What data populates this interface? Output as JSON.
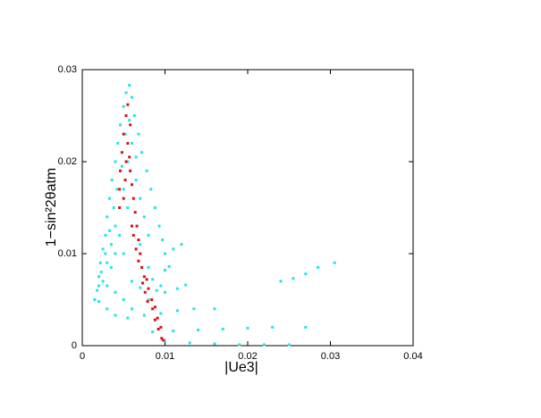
{
  "chart_data": {
    "type": "scatter",
    "xlabel": "|Ue3|",
    "ylabel": "1−sin²2θatm",
    "xlim": [
      0,
      0.04
    ],
    "ylim": [
      0,
      0.03
    ],
    "xticks": [
      0,
      0.01,
      0.02,
      0.03,
      0.04
    ],
    "yticks": [
      0,
      0.01,
      0.02,
      0.03
    ],
    "grid": false,
    "series": [
      {
        "color": "#22e6e6",
        "x": [
          0.0015,
          0.0018,
          0.002,
          0.0022,
          0.0025,
          0.0028,
          0.003,
          0.0033,
          0.0036,
          0.004,
          0.0043,
          0.0046,
          0.005,
          0.0053,
          0.0057,
          0.006,
          0.0063,
          0.0068,
          0.0072,
          0.0078,
          0.0083,
          0.0088,
          0.0093,
          0.0097,
          0.0025,
          0.003,
          0.0035,
          0.004,
          0.0045,
          0.005,
          0.0055,
          0.006,
          0.0035,
          0.004,
          0.0045,
          0.0055,
          0.0065,
          0.007,
          0.0075,
          0.008,
          0.003,
          0.005,
          0.006,
          0.007,
          0.0038,
          0.0042,
          0.0048,
          0.0052,
          0.0057,
          0.0065,
          0.0033,
          0.0028,
          0.0023,
          0.002,
          0.002,
          0.004,
          0.006,
          0.008,
          0.01,
          0.011,
          0.012,
          0.003,
          0.005,
          0.007,
          0.0085,
          0.01,
          0.0105,
          0.004,
          0.006,
          0.008,
          0.01,
          0.0115,
          0.0125,
          0.0055,
          0.0075,
          0.0095,
          0.0115,
          0.0135,
          0.016,
          0.0085,
          0.011,
          0.014,
          0.017,
          0.02,
          0.023,
          0.027,
          0.01,
          0.013,
          0.016,
          0.019,
          0.022,
          0.025,
          0.024,
          0.0255,
          0.027,
          0.0285,
          0.0305,
          0.009,
          0.0095
        ],
        "values": [
          0.005,
          0.006,
          0.0075,
          0.009,
          0.0105,
          0.012,
          0.014,
          0.016,
          0.018,
          0.02,
          0.022,
          0.024,
          0.026,
          0.0275,
          0.0283,
          0.027,
          0.025,
          0.023,
          0.021,
          0.019,
          0.017,
          0.015,
          0.013,
          0.0115,
          0.007,
          0.009,
          0.011,
          0.013,
          0.015,
          0.017,
          0.02,
          0.022,
          0.0085,
          0.01,
          0.012,
          0.015,
          0.018,
          0.016,
          0.014,
          0.012,
          0.0065,
          0.01,
          0.013,
          0.011,
          0.015,
          0.017,
          0.0195,
          0.023,
          0.0245,
          0.0205,
          0.0125,
          0.01,
          0.008,
          0.0065,
          0.0048,
          0.0058,
          0.007,
          0.0085,
          0.01,
          0.0105,
          0.011,
          0.004,
          0.005,
          0.0063,
          0.0072,
          0.0082,
          0.0086,
          0.0033,
          0.004,
          0.005,
          0.0058,
          0.0062,
          0.0066,
          0.003,
          0.0033,
          0.0035,
          0.0038,
          0.004,
          0.004,
          0.0015,
          0.0016,
          0.0017,
          0.0018,
          0.0019,
          0.002,
          0.002,
          0.0005,
          0.0003,
          0.0002,
          0.0001,
          0.0001,
          0.0001,
          0.007,
          0.0073,
          0.0078,
          0.0085,
          0.009,
          0.006,
          0.0065
        ]
      },
      {
        "color": "#dd1111",
        "x": [
          0.0045,
          0.0045,
          0.0046,
          0.0048,
          0.005,
          0.0053,
          0.0055,
          0.0055,
          0.0053,
          0.0052,
          0.005,
          0.0058,
          0.006,
          0.0062,
          0.0064,
          0.0066,
          0.0068,
          0.007,
          0.006,
          0.0062,
          0.0065,
          0.0068,
          0.0072,
          0.0075,
          0.0073,
          0.0078,
          0.0076,
          0.008,
          0.0079,
          0.0084,
          0.0085,
          0.0088,
          0.0088,
          0.0091,
          0.0092,
          0.0095,
          0.0096,
          0.0098,
          0.0058,
          0.0057
        ],
        "values": [
          0.015,
          0.017,
          0.019,
          0.021,
          0.023,
          0.025,
          0.0262,
          0.022,
          0.02,
          0.018,
          0.016,
          0.019,
          0.0175,
          0.016,
          0.0145,
          0.013,
          0.0115,
          0.01,
          0.013,
          0.012,
          0.0105,
          0.0092,
          0.0085,
          0.0075,
          0.0068,
          0.0072,
          0.0058,
          0.0062,
          0.0048,
          0.005,
          0.004,
          0.0042,
          0.0028,
          0.003,
          0.0018,
          0.002,
          0.0008,
          0.0006,
          0.024,
          0.0205
        ]
      }
    ]
  }
}
